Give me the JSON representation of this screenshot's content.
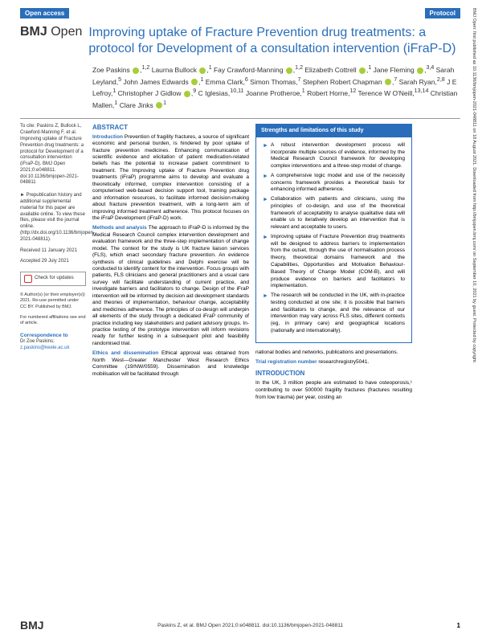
{
  "banner": {
    "open_access": "Open access",
    "protocol": "Protocol"
  },
  "journal": {
    "b": "BMJ",
    "o": "Open"
  },
  "title": "Improving uptake of Fracture Prevention drug treatments: a protocol for Development of a consultation intervention (iFraP-D)",
  "authors_html": "Zoe Paskins ⬤,1,2 Laurna Bullock ⬤,1 Fay Crawford-Manning ⬤,1,2 Elizabeth Cottrell ⬤,1 Jane Fleming ⬤,3,4 Sarah Leyland,5 John James Edwards ⬤,1 Emma Clark,6 Simon Thomas,7 Stephen Robert Chapman ⬤,7 Sarah Ryan,2,8 J E Lefroy,1 Christopher J Gidlow ⬤,9 C Iglesias,10,11 Joanne Protheroe,1 Robert Horne,12 Terence W O'Neill,13,14 Christian Mallen,1 Clare Jinks ⬤1",
  "left": {
    "cite": "To cite: Paskins Z, Bullock L, Crawford-Manning F, et al. Improving uptake of Fracture Prevention drug treatments: a protocol for Development of a consultation intervention (iFraP-D). BMJ Open 2021;0:e048811. doi:10.1136/bmjopen-2021-048811",
    "prepub": "► Prepublication history and additional supplemental material for this paper are available online. To view these files, please visit the journal online. (http://dx.doi.org/10.1136/bmjopen-2021-048811).",
    "received": "Received 11 January 2021",
    "accepted": "Accepted 29 July 2021",
    "check": "Check for updates",
    "copyright": "© Author(s) (or their employer(s)) 2021. Re-use permitted under CC BY. Published by BMJ.",
    "affil": "For numbered affiliations see end of article.",
    "corr_hd": "Correspondence to",
    "corr_name": "Dr Zoe Paskins;",
    "corr_email": "z.paskins@keele.ac.uk"
  },
  "abstract": {
    "hd": "ABSTRACT",
    "intro_label": "Introduction",
    "intro": " Prevention of fragility fractures, a source of significant economic and personal burden, is hindered by poor uptake of fracture prevention medicines. Enhancing communication of scientific evidence and elicitation of patient medication-related beliefs has the potential to increase patient commitment to treatment. The Improving uptake of Fracture Prevention drug treatments (iFraP) programme aims to develop and evaluate a theoretically informed, complex intervention consisting of a computerised web-based decision support tool, training package and information resources, to facilitate informed decision-making about fracture prevention treatment, with a long-term aim of improving informed treatment adherence. This protocol focuses on the iFraP Development (iFraP-D) work.",
    "methods_label": "Methods and analysis",
    "methods": " The approach to iFraP-D is informed by the Medical Research Council complex intervention development and evaluation framework and the three-step implementation of change model. The context for the study is UK fracture liaison services (FLS), which enact secondary fracture prevention. An evidence synthesis of clinical guidelines and Delphi exercise will be conducted to identify content for the intervention. Focus groups with patients, FLS clinicians and general practitioners and a usual care survey will facilitate understanding of current practice, and investigate barriers and facilitators to change. Design of the iFraP intervention will be informed by decision aid development standards and theories of implementation, behaviour change, acceptability and medicines adherence. The principles of co-design will underpin all elements of the study through a dedicated iFraP community of practice including key stakeholders and patient advisory groups. In-practice testing of the prototype intervention will inform revisions ready for further testing in a subsequent pilot and feasibility randomised trial.",
    "ethics_label": "Ethics and dissemination",
    "ethics": " Ethical approval was obtained from North West—Greater Manchester West Research Ethics Committee (19/NW/0559). Dissemination and knowledge mobilisation will be facilitated through"
  },
  "box": {
    "hd": "Strengths and limitations of this study",
    "items": [
      "A robust intervention development process will incorporate multiple sources of evidence, informed by the Medical Research Council framework for developing complex interventions and a three-step model of change.",
      "A comprehensive logic model and use of the necessity concerns framework provides a theoretical basis for enhancing informed adherence.",
      "Collaboration with patients and clinicians, using the principles of co-design, and use of the theoretical framework of acceptability to analyse qualitative data will enable us to iteratively develop an intervention that is relevant and acceptable to users.",
      "Improving uptake of Fracture Prevention drug treatments will be designed to address barriers to implementation from the outset, through the use of normalisation process theory, theoretical domains framework and the Capabilities, Opportunities and Motivation Behaviour-Based Theory of Change Model (COM-B), and will produce evidence on barriers and facilitators to implementation.",
      "The research will be conducted in the UK, with in-practice testing conducted at one site; it is possible that barriers and facilitators to change, and the relevance of our intervention may vary across FLS sites, different contexts (eg, in primary care) and geographical locations (nationally and internationally)."
    ]
  },
  "right": {
    "p1": "national bodies and networks, publications and presentations.",
    "trial_label": "Trial registration number",
    "trial": " researchregistry5041.",
    "intro_hd": "INTRODUCTION",
    "intro_p": "In the UK, 3 million people are estimated to have osteoporosis,¹ contributing to over 500000 fragility fractures (fractures resulting from low trauma) per year, costing an"
  },
  "sidebar": "BMJ Open: first published as 10.1136/bmjopen-2021-048811 on 18 August 2021. Downloaded from http://bmjopen.bmj.com/ on September 10, 2021 by guest. Protected by copyright.",
  "footer": {
    "logo": "BMJ",
    "cite": "Paskins Z, et al. BMJ Open 2021;0:e048811. doi:10.1136/bmjopen-2021-048811",
    "page": "1"
  }
}
